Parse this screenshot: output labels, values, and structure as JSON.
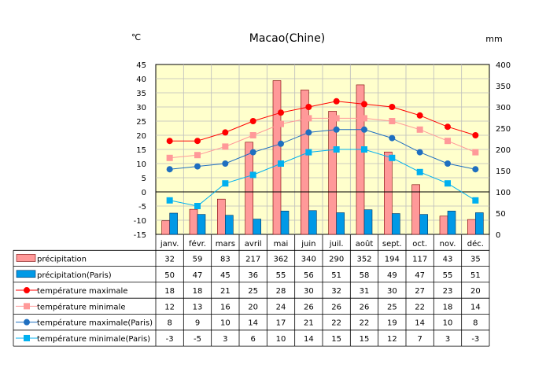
{
  "chart_data": {
    "type": "bar+line",
    "title": "Macao(Chine)",
    "left_unit": "℃",
    "right_unit": "mm",
    "categories": [
      "janv.",
      "févr.",
      "mars",
      "avril",
      "mai",
      "juin",
      "juil.",
      "août",
      "sept.",
      "oct.",
      "nov.",
      "déc."
    ],
    "y_left": {
      "min": -15,
      "max": 45,
      "ticks": [
        -15,
        -10,
        -5,
        0,
        5,
        10,
        15,
        20,
        25,
        30,
        35,
        40,
        45
      ]
    },
    "y_right": {
      "min": 0,
      "max": 400,
      "ticks": [
        0,
        50,
        100,
        150,
        200,
        250,
        300,
        350,
        400
      ]
    },
    "grid": true,
    "bar_series": [
      {
        "name": "précipitation",
        "values": [
          32,
          59,
          83,
          217,
          362,
          340,
          290,
          352,
          194,
          117,
          43,
          35
        ],
        "color": "#FF9999",
        "stroke": "#7a0000",
        "axis": "right"
      },
      {
        "name": "précipitation(Paris)",
        "values": [
          50,
          47,
          45,
          36,
          55,
          56,
          51,
          58,
          49,
          47,
          55,
          51
        ],
        "color": "#0099E6",
        "stroke": "#003366",
        "axis": "right"
      }
    ],
    "line_series": [
      {
        "name": "température maximale",
        "values": [
          18,
          18,
          21,
          25,
          28,
          30,
          32,
          31,
          30,
          27,
          23,
          20
        ],
        "color": "#FF0000",
        "marker": "circle",
        "axis": "left"
      },
      {
        "name": "température minimale",
        "values": [
          12,
          13,
          16,
          20,
          24,
          26,
          26,
          26,
          25,
          22,
          18,
          14
        ],
        "color": "#FF9999",
        "marker": "square",
        "axis": "left"
      },
      {
        "name": "température maximale(Paris)",
        "values": [
          8,
          9,
          10,
          14,
          17,
          21,
          22,
          22,
          19,
          14,
          10,
          8
        ],
        "color": "#1F6FC0",
        "marker": "circle",
        "axis": "left"
      },
      {
        "name": "température minimale(Paris)",
        "values": [
          -3,
          -5,
          3,
          6,
          10,
          14,
          15,
          15,
          12,
          7,
          3,
          -3
        ],
        "color": "#00B0F0",
        "marker": "square",
        "axis": "left"
      }
    ],
    "colors": {
      "plot_background": "#FFFFCC",
      "table_border": "#000000"
    }
  }
}
